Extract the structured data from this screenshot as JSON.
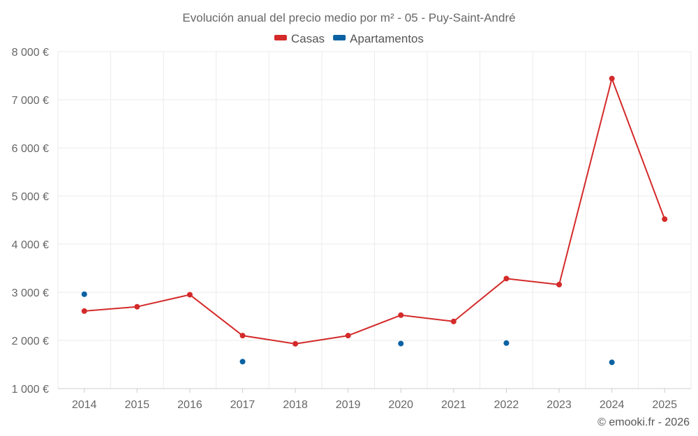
{
  "chart_data": {
    "type": "line",
    "title": "Evolución anual del precio medio por m² - 05 - Puy-Saint-André",
    "x": [
      "2014",
      "2015",
      "2016",
      "2017",
      "2018",
      "2019",
      "2020",
      "2021",
      "2022",
      "2023",
      "2024",
      "2025"
    ],
    "ylim": [
      1000,
      8000
    ],
    "yticks": [
      1000,
      2000,
      3000,
      4000,
      5000,
      6000,
      7000,
      8000
    ],
    "ytick_labels": [
      "1 000 €",
      "2 000 €",
      "3 000 €",
      "4 000 €",
      "5 000 €",
      "6 000 €",
      "7 000 €",
      "8 000 €"
    ],
    "grid": true,
    "legend_position": "top-center",
    "series": [
      {
        "name": "Casas",
        "color": "#d42a2a",
        "line": true,
        "values": [
          2610,
          2700,
          2950,
          2100,
          1930,
          2100,
          2525,
          2395,
          3285,
          3160,
          7440,
          4520
        ]
      },
      {
        "name": "Apartamentos",
        "color": "#0b62a3",
        "line": false,
        "values": [
          2960,
          null,
          null,
          1560,
          null,
          null,
          1935,
          null,
          1945,
          null,
          1545,
          null
        ]
      }
    ]
  },
  "credit": "© emooki.fr - 2026"
}
